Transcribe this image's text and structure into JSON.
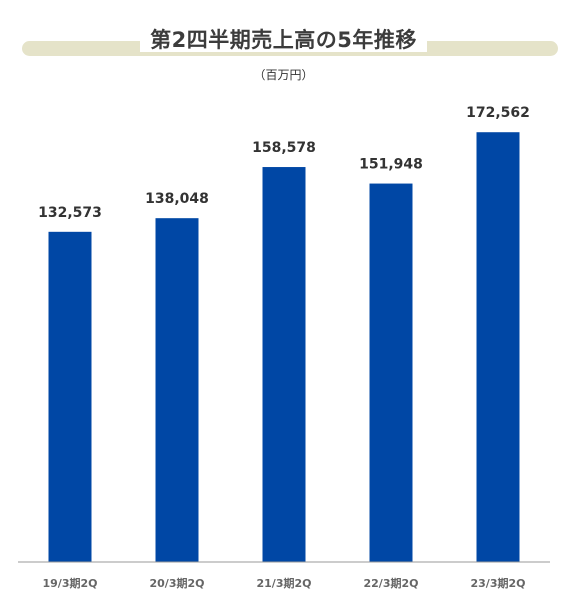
{
  "chart_data": {
    "type": "bar",
    "title": "第2四半期売上高の5年推移",
    "unit": "（百万円）",
    "categories": [
      "19/3期2Q",
      "20/3期2Q",
      "21/3期2Q",
      "22/3期2Q",
      "23/3期2Q"
    ],
    "values": [
      132573,
      138048,
      158578,
      151948,
      172562
    ],
    "value_labels": [
      "132,573",
      "138,048",
      "158,578",
      "151,948",
      "172,562"
    ],
    "xlabel": "",
    "ylabel": "",
    "grid": false,
    "legend": "none",
    "colors": {
      "bar": "#0047a5",
      "band": "#e5e3c9",
      "axis": "#999999"
    }
  }
}
